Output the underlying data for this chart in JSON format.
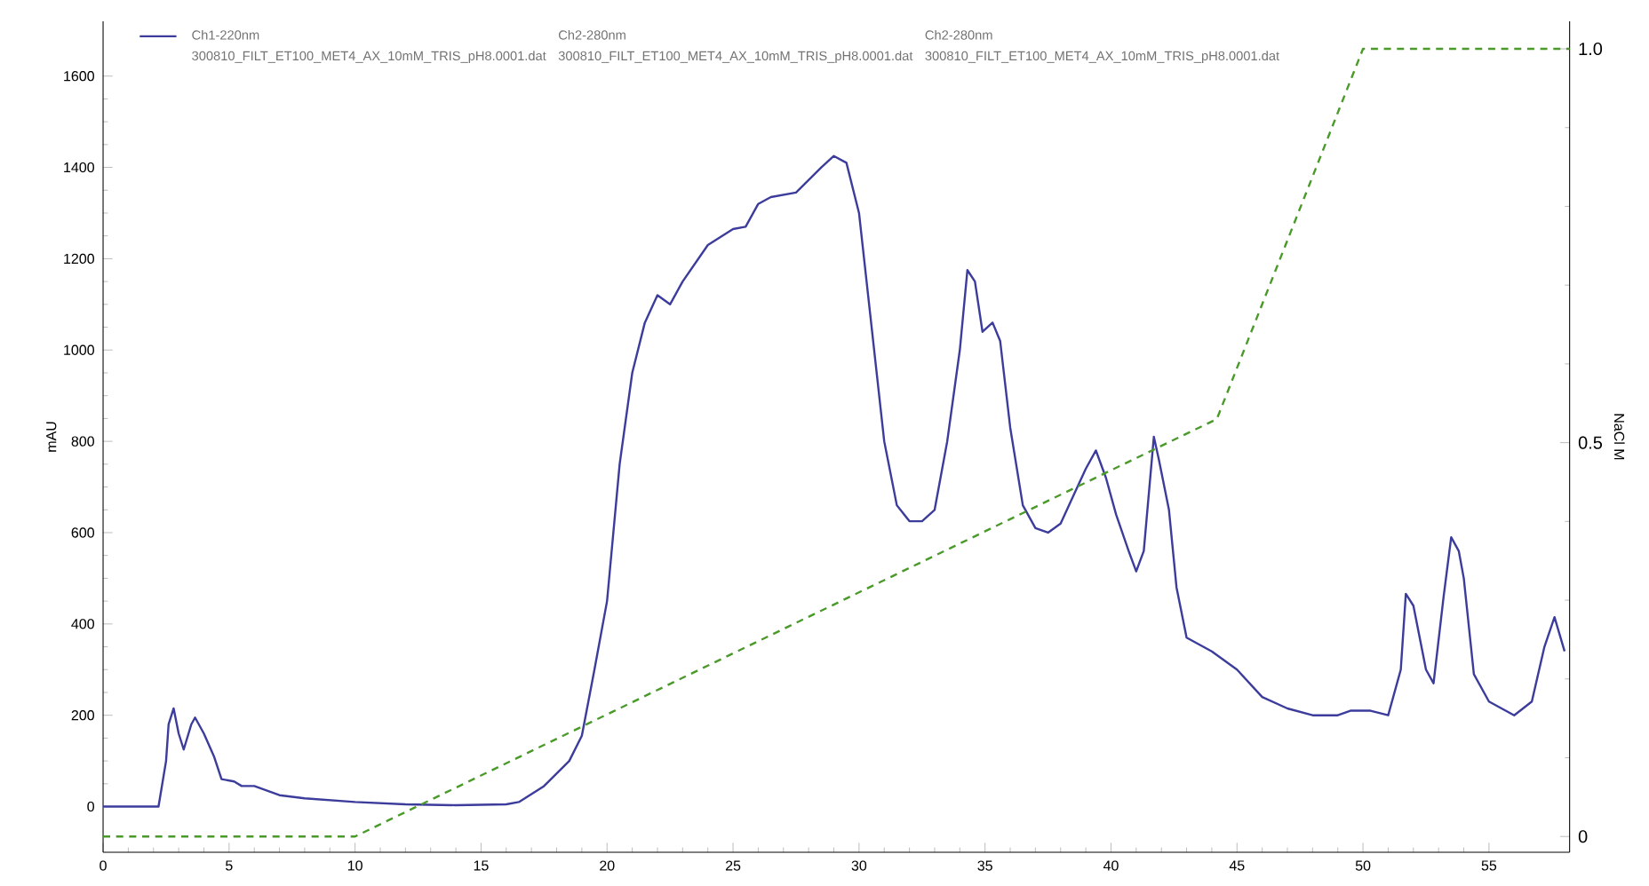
{
  "chart_data": {
    "type": "line",
    "xlim": [
      0,
      58.2
    ],
    "xticks": [
      0,
      5,
      10,
      15,
      20,
      25,
      30,
      35,
      40,
      45,
      50,
      55
    ],
    "ylim": [
      -100,
      1720
    ],
    "yticks": [
      0,
      200,
      400,
      600,
      800,
      1000,
      1200,
      1400,
      1600
    ],
    "y2lim": [
      -0.02,
      1.035
    ],
    "y2ticks": [
      0,
      0.5,
      {
        "value": 1,
        "label": "1.0"
      }
    ],
    "ylabel": "mAU",
    "y2label": "NaCl M",
    "legend": "top",
    "grid": false,
    "marker": "none",
    "annotations": [
      "300810_FILT_ET100_MET4_AX_10mM_TRIS_pH8.0001.dat",
      "Ch2-280nm",
      "300810_FILT_ET100_MET4_AX_10mM_TRIS_pH8.0001.dat",
      "Ch2-280nm",
      "300810_FILT_ET100_MET4_AX_10mM_TRIS_pH8.0001.dat"
    ],
    "series": [
      {
        "name": "Ch1-220nm",
        "color": "#3c3c9c",
        "line_style": "solid",
        "x": [
          0,
          2.2,
          2.5,
          2.6,
          2.8,
          3.0,
          3.2,
          3.5,
          3.65,
          4.0,
          4.4,
          4.7,
          5.2,
          5.5,
          6,
          7,
          8,
          10,
          12,
          14,
          16,
          16.5,
          17.5,
          18.5,
          19,
          19.5,
          20,
          20.5,
          21,
          21.5,
          22,
          22.5,
          23,
          24,
          25,
          25.5,
          26,
          26.5,
          27.5,
          28.5,
          29,
          29.5,
          30,
          30.5,
          31,
          31.5,
          32,
          32.5,
          33,
          33.5,
          34,
          34.3,
          34.6,
          34.9,
          35.3,
          35.6,
          36,
          36.5,
          37,
          37.5,
          38,
          38.5,
          39,
          39.4,
          39.8,
          40.2,
          40.7,
          41,
          41.3,
          41.7,
          41.9,
          42.3,
          42.6,
          43,
          44,
          45,
          46,
          47,
          48,
          49,
          49.5,
          50.3,
          51,
          51.5,
          51.7,
          52.0,
          52.5,
          52.8,
          53.2,
          53.5,
          53.8,
          54,
          54.4,
          55,
          56,
          56.7,
          57.2,
          57.6,
          58
        ],
        "values": [
          0,
          0,
          100,
          180,
          215,
          160,
          125,
          180,
          195,
          160,
          110,
          60,
          55,
          45,
          45,
          25,
          18,
          10,
          5,
          3,
          5,
          10,
          45,
          100,
          155,
          300,
          450,
          750,
          950,
          1060,
          1120,
          1100,
          1150,
          1230,
          1265,
          1270,
          1320,
          1335,
          1345,
          1400,
          1425,
          1410,
          1300,
          1050,
          800,
          660,
          625,
          625,
          650,
          800,
          1000,
          1175,
          1150,
          1040,
          1060,
          1020,
          830,
          660,
          610,
          600,
          620,
          680,
          740,
          780,
          720,
          640,
          560,
          515,
          560,
          810,
          760,
          650,
          480,
          370,
          340,
          300,
          240,
          215,
          200,
          200,
          210,
          210,
          200,
          300,
          466,
          440,
          300,
          270,
          460,
          590,
          560,
          500,
          290,
          230,
          200,
          230,
          350,
          415,
          340
        ]
      },
      {
        "color": "#4a9a2a",
        "line_style": "dashed",
        "axis": "y2",
        "x": [
          0,
          10,
          44.2,
          50,
          58.2
        ],
        "values": [
          0,
          0,
          0.53,
          1,
          1
        ]
      }
    ]
  }
}
